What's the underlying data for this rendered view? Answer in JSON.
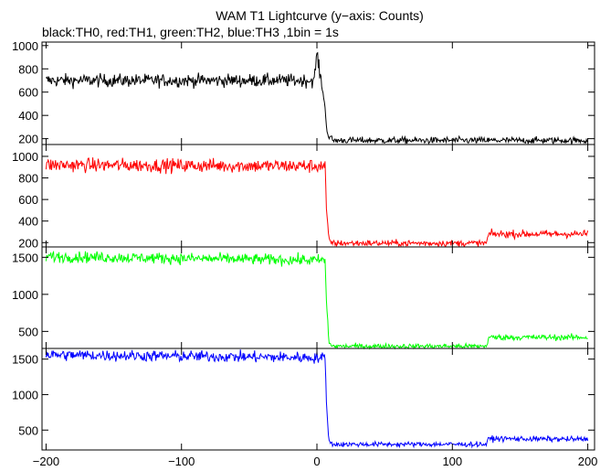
{
  "title": "WAM T1 Lightcurve (y−axis: Counts)",
  "subtitle": "black:TH0, red:TH1, green:TH2, blue:TH3 ,1bin = 1s",
  "chart_data": {
    "type": "line",
    "title": "WAM T1 Lightcurve (y−axis: Counts)",
    "subtitle": "black:TH0, red:TH1, green:TH2, blue:TH3 ,1bin = 1s",
    "xlabel": "",
    "ylabel": "",
    "xlim": [
      -203,
      205
    ],
    "x_ticks": [
      -200,
      -100,
      0,
      100,
      200
    ],
    "x_tick_labels": [
      "−200",
      "−100",
      "0",
      "100",
      "200"
    ],
    "grid": false,
    "panels": [
      {
        "name": "TH0",
        "color": "#000000",
        "ylim": [
          150,
          1030
        ],
        "y_ticks": [
          200,
          400,
          600,
          800,
          1000
        ],
        "profile": [
          {
            "x": -200,
            "y": 700
          },
          {
            "x": -2,
            "y": 700
          },
          {
            "x": 0,
            "y": 940
          },
          {
            "x": 2,
            "y": 760
          },
          {
            "x": 4,
            "y": 650
          },
          {
            "x": 6,
            "y": 450
          },
          {
            "x": 8,
            "y": 230
          },
          {
            "x": 12,
            "y": 185
          },
          {
            "x": 200,
            "y": 185
          }
        ],
        "noise": 28
      },
      {
        "name": "TH1",
        "color": "#ff0000",
        "ylim": [
          160,
          1110
        ],
        "y_ticks": [
          200,
          400,
          600,
          800,
          1000
        ],
        "profile": [
          {
            "x": -200,
            "y": 920
          },
          {
            "x": 6,
            "y": 910
          },
          {
            "x": 7,
            "y": 500
          },
          {
            "x": 9,
            "y": 215
          },
          {
            "x": 12,
            "y": 195
          },
          {
            "x": 125,
            "y": 195
          },
          {
            "x": 127,
            "y": 280
          },
          {
            "x": 200,
            "y": 280
          }
        ],
        "noise": 32
      },
      {
        "name": "TH2",
        "color": "#00ff00",
        "ylim": [
          270,
          1640
        ],
        "y_ticks": [
          500,
          1000,
          1500
        ],
        "profile": [
          {
            "x": -200,
            "y": 1510
          },
          {
            "x": 6,
            "y": 1460
          },
          {
            "x": 7,
            "y": 900
          },
          {
            "x": 9,
            "y": 340
          },
          {
            "x": 12,
            "y": 300
          },
          {
            "x": 125,
            "y": 300
          },
          {
            "x": 127,
            "y": 420
          },
          {
            "x": 200,
            "y": 420
          }
        ],
        "noise": 38
      },
      {
        "name": "TH3",
        "color": "#0000ff",
        "ylim": [
          220,
          1650
        ],
        "y_ticks": [
          500,
          1000,
          1500
        ],
        "profile": [
          {
            "x": -200,
            "y": 1560
          },
          {
            "x": 6,
            "y": 1520
          },
          {
            "x": 7,
            "y": 900
          },
          {
            "x": 9,
            "y": 330
          },
          {
            "x": 12,
            "y": 300
          },
          {
            "x": 125,
            "y": 300
          },
          {
            "x": 127,
            "y": 380
          },
          {
            "x": 200,
            "y": 370
          }
        ],
        "noise": 40
      }
    ]
  }
}
